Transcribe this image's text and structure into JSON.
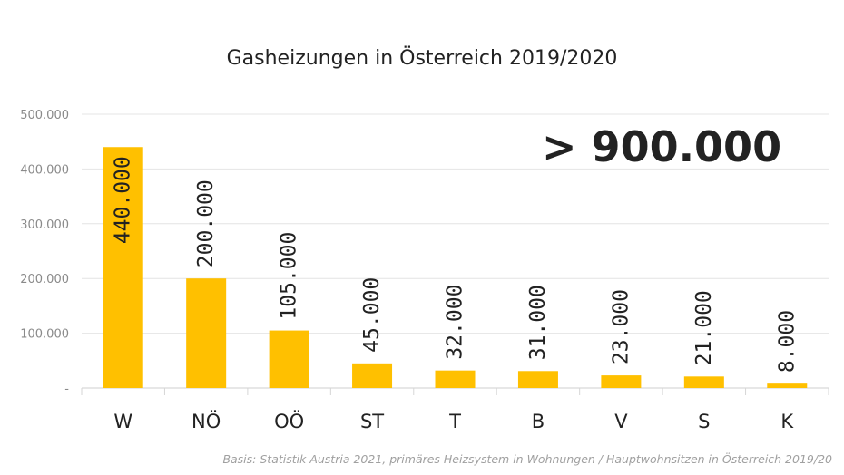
{
  "chart_data": {
    "type": "bar",
    "title": "Gasheizungen in Österreich 2019/2020",
    "categories": [
      "W",
      "NÖ",
      "OÖ",
      "ST",
      "T",
      "B",
      "V",
      "S",
      "K"
    ],
    "values": [
      440000,
      200000,
      105000,
      45000,
      32000,
      31000,
      23000,
      21000,
      8000
    ],
    "data_labels": [
      "440.000",
      "200.000",
      "105.000",
      "45.000",
      "32.000",
      "31.000",
      "23.000",
      "21.000",
      "8.000"
    ],
    "ylim": [
      0,
      500000
    ],
    "yticks": [
      0,
      100000,
      200000,
      300000,
      400000,
      500000
    ],
    "ytick_labels": [
      "-",
      "100.000",
      "200.000",
      "300.000",
      "400.000",
      "500.000"
    ],
    "grid": true,
    "bar_color": "#FFC000",
    "annotation": "> 900.000",
    "source": "Basis: Statistik Austria 2021, primäres Heizsystem in Wohnungen / Hauptwohnsitzen in Österreich 2019/20"
  }
}
